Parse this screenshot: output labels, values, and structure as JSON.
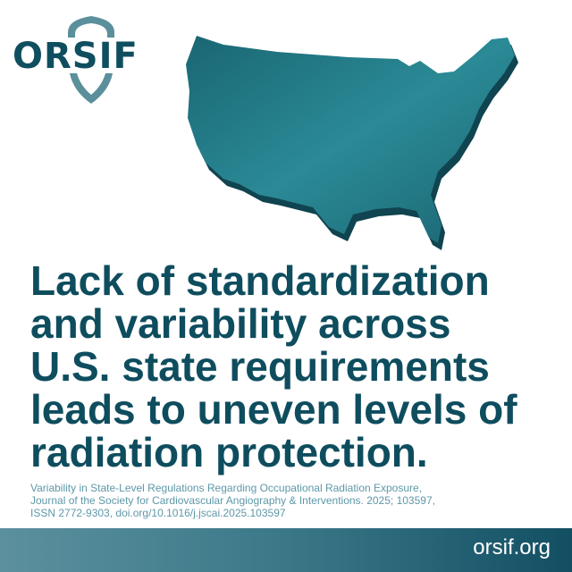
{
  "logo": {
    "text": "ORSIF",
    "colors": {
      "shield": "#5b8f9c",
      "text": "#0f4e5f"
    }
  },
  "illustration": {
    "icon": "us-map-3d",
    "color": "#1f707c"
  },
  "headline": {
    "lines": [
      "Lack of standardization",
      "and variability across",
      "U.S. state requirements",
      "leads to uneven levels of",
      "radiation protection."
    ]
  },
  "citation": {
    "lines": [
      "Variability in State-Level Regulations Regarding Occupational Radiation Exposure,",
      "Journal of the Society for Cardiovascular Angiography & Interventions. 2025; 103597,",
      "ISSN 2772-9303, doi.org/10.1016/j.jscai.2025.103597"
    ]
  },
  "footer": {
    "url": "orsif.org"
  },
  "colors": {
    "primary": "#0e4d5e",
    "accent": "#5e98a8"
  }
}
